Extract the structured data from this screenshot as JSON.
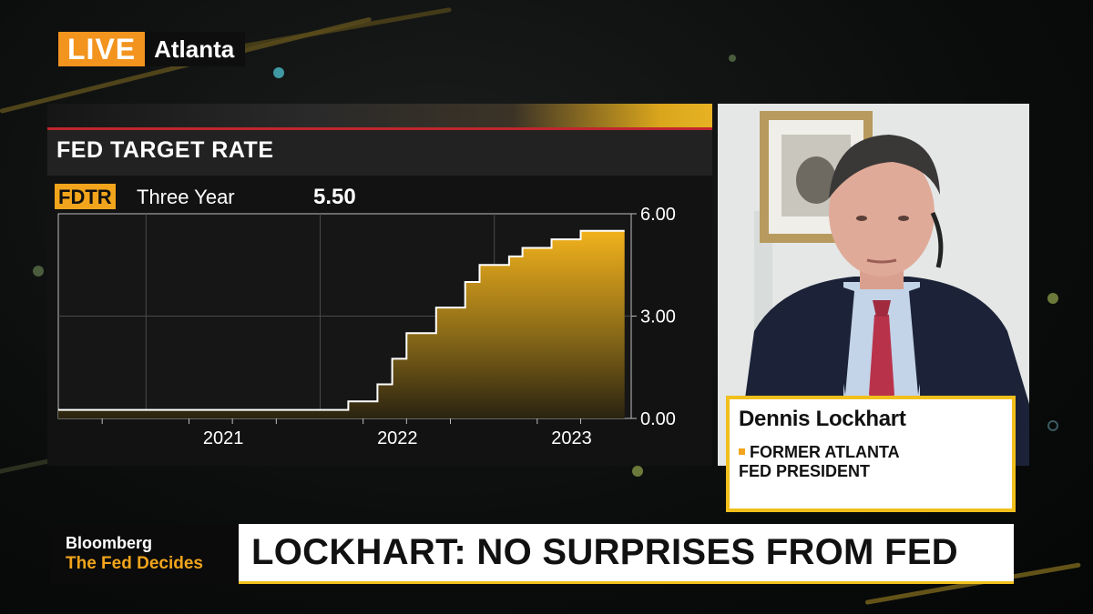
{
  "live_bug": {
    "live_label": "LIVE",
    "location": "Atlanta"
  },
  "chart": {
    "title": "FED TARGET RATE",
    "ticker": "FDTR",
    "range_label": "Three Year",
    "last_value": "5.50"
  },
  "chart_data": {
    "type": "area",
    "title": "FED TARGET RATE",
    "x": [
      "2020-07",
      "2021-01",
      "2021-07",
      "2022-01",
      "2022-03",
      "2022-05",
      "2022-06",
      "2022-07",
      "2022-09",
      "2022-11",
      "2022-12",
      "2023-02",
      "2023-03",
      "2023-05",
      "2023-07",
      "2023-10"
    ],
    "values": [
      0.25,
      0.25,
      0.25,
      0.25,
      0.5,
      1.0,
      1.75,
      2.5,
      3.25,
      4.0,
      4.5,
      4.75,
      5.0,
      5.25,
      5.5,
      5.5
    ],
    "x_tick_labels": [
      "2021",
      "2022",
      "2023"
    ],
    "y_tick_labels": [
      "6.00",
      "3.00",
      "0.00"
    ],
    "ylim": [
      0,
      6
    ],
    "grid": true,
    "series_color": "#f2b21c",
    "line_color": "#ffffff"
  },
  "guest": {
    "name": "Dennis Lockhart",
    "title_line1": "FORMER ATLANTA",
    "title_line2": "FED PRESIDENT"
  },
  "lower_third": {
    "brand": "Bloomberg",
    "show": "The Fed Decides",
    "headline": "LOCKHART: NO SURPRISES FROM FED"
  },
  "colors": {
    "accent_orange": "#f2941e",
    "accent_yellow": "#f2c01c",
    "alert_red": "#c0262d"
  }
}
